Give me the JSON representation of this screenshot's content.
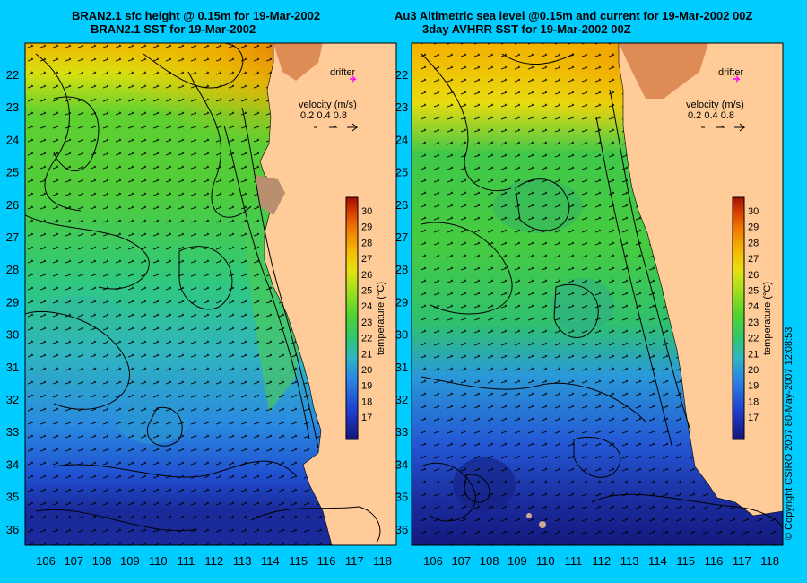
{
  "left_panel": {
    "title_line1": "BRAN2.1 sfc height @ 0.15m for 19-Mar-2002",
    "title_line2": "BRAN2.1 SST for 19-Mar-2002",
    "drifter_label": "drifter",
    "velocity_label": "velocity (m/s)",
    "velocity_values": [
      "0.2",
      "0.4",
      "0.8"
    ],
    "colorbar_label": "temperature (°C)"
  },
  "right_panel": {
    "title_line1": "Au3 Altimetric sea level  @0.15m and current for 19-Mar-2002 00Z",
    "title_line2": "3day AVHRR SST for 19-Mar-2002 00Z",
    "drifter_label": "drifter",
    "velocity_label": "velocity (m/s)",
    "velocity_values": [
      "0.2",
      "0.4",
      "0.8"
    ],
    "colorbar_label": "temperature (°C)"
  },
  "axes": {
    "x_ticks": [
      "106",
      "107",
      "108",
      "109",
      "110",
      "111",
      "112",
      "113",
      "114",
      "115",
      "116",
      "117",
      "118"
    ],
    "y_ticks": [
      "22",
      "23",
      "24",
      "25",
      "26",
      "27",
      "28",
      "29",
      "30",
      "31",
      "32",
      "33",
      "34",
      "35",
      "36"
    ]
  },
  "colorbar": {
    "ticks": [
      "30",
      "29",
      "28",
      "27",
      "26",
      "25",
      "24",
      "23",
      "22",
      "21",
      "20",
      "19",
      "18",
      "17"
    ],
    "colors": [
      "#1a1a8c",
      "#2040d0",
      "#2a7fe0",
      "#30b0c8",
      "#30c870",
      "#50d030",
      "#90e020",
      "#d8e010",
      "#f0c000",
      "#f08000",
      "#e04000",
      "#b01000"
    ]
  },
  "colors": {
    "background": "#00ccff",
    "land": "#ffcc99",
    "drifter": "#ff00ff"
  },
  "credit": "© Copyright CSIRO 2007    80-May-2007 12:08:53"
}
